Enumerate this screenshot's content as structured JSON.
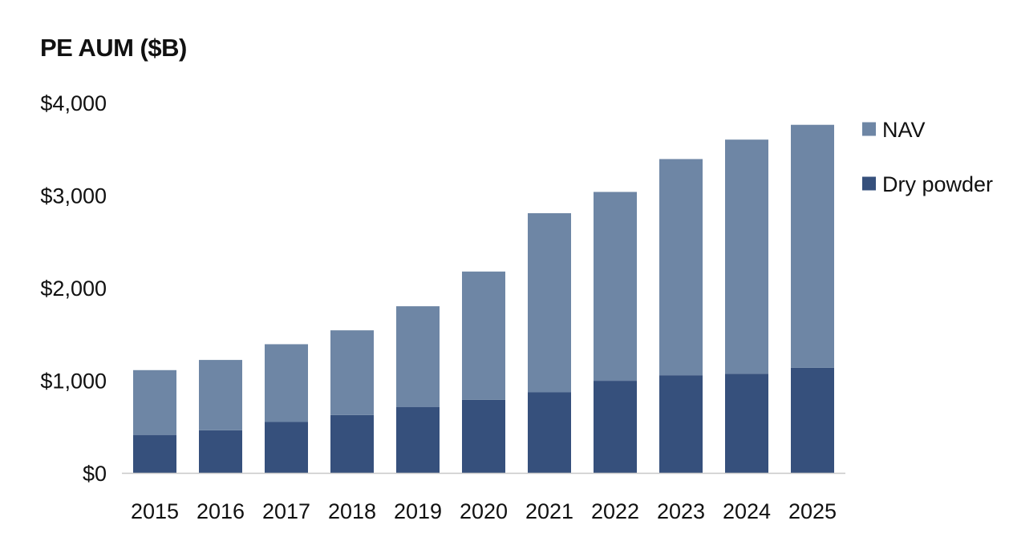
{
  "chart_data": {
    "type": "bar",
    "stacked": true,
    "title": "PE AUM ($B)",
    "xlabel": "",
    "ylabel": "",
    "categories": [
      "2015",
      "2016",
      "2017",
      "2018",
      "2019",
      "2020",
      "2021",
      "2022",
      "2023",
      "2024",
      "2025"
    ],
    "series": [
      {
        "name": "Dry powder",
        "color": "#36507c",
        "values": [
          410,
          460,
          550,
          625,
          710,
          790,
          870,
          995,
          1055,
          1070,
          1135
        ]
      },
      {
        "name": "NAV",
        "color": "#6e86a5",
        "values": [
          700,
          760,
          840,
          915,
          1090,
          1385,
          1935,
          2040,
          2335,
          2530,
          2625
        ]
      }
    ],
    "legend_order": [
      "NAV",
      "Dry powder"
    ],
    "legend_position": "right",
    "ylim": [
      0,
      4000
    ],
    "yticks": [
      0,
      1000,
      2000,
      3000,
      4000
    ],
    "ytick_labels": [
      "$0",
      "$1,000",
      "$2,000",
      "$3,000",
      "$4,000"
    ],
    "grid": false
  }
}
